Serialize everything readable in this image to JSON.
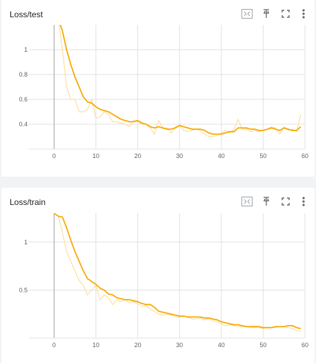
{
  "cards": [
    {
      "title": "Loss/test",
      "icons": [
        "expand-icon",
        "pin-icon",
        "fullscreen-icon",
        "more-vert-icon"
      ]
    },
    {
      "title": "Loss/train",
      "icons": [
        "expand-icon",
        "pin-icon",
        "fullscreen-icon",
        "more-vert-icon"
      ]
    }
  ],
  "colors": {
    "smoothed": "#f9a800",
    "raw": "#fcd98a",
    "grid": "#e0e0e0",
    "axis": "#9e9e9e"
  },
  "chart_data": [
    {
      "type": "line",
      "title": "Loss/test",
      "xlabel": "",
      "ylabel": "",
      "xlim": [
        -6,
        60
      ],
      "ylim": [
        0.2,
        1.2
      ],
      "x_ticks": [
        0,
        10,
        20,
        30,
        40,
        50,
        60
      ],
      "y_ticks": [
        0.4,
        0.6,
        0.8,
        1
      ],
      "grid": true,
      "series": [
        {
          "style": "raw",
          "x": [
            1,
            2,
            3,
            4,
            5,
            6,
            7,
            8,
            9,
            10,
            11,
            12,
            13,
            14,
            15,
            16,
            17,
            18,
            19,
            20,
            21,
            22,
            23,
            24,
            25,
            26,
            27,
            28,
            29,
            30,
            31,
            32,
            33,
            34,
            35,
            36,
            37,
            38,
            39,
            40,
            41,
            42,
            43,
            44,
            45,
            46,
            47,
            48,
            49,
            50,
            51,
            52,
            53,
            54,
            55,
            56,
            57,
            58,
            59
          ],
          "y": [
            1.25,
            1.0,
            0.7,
            0.6,
            0.6,
            0.5,
            0.5,
            0.52,
            0.6,
            0.45,
            0.46,
            0.5,
            0.48,
            0.42,
            0.42,
            0.41,
            0.4,
            0.38,
            0.43,
            0.42,
            0.4,
            0.4,
            0.37,
            0.32,
            0.43,
            0.37,
            0.37,
            0.33,
            0.38,
            0.39,
            0.35,
            0.34,
            0.35,
            0.36,
            0.35,
            0.32,
            0.3,
            0.3,
            0.31,
            0.33,
            0.35,
            0.33,
            0.36,
            0.44,
            0.36,
            0.36,
            0.34,
            0.35,
            0.34,
            0.35,
            0.36,
            0.38,
            0.37,
            0.32,
            0.38,
            0.35,
            0.36,
            0.34,
            0.48
          ]
        },
        {
          "style": "smoothed",
          "x": [
            1,
            2,
            3,
            4,
            5,
            6,
            7,
            8,
            9,
            10,
            11,
            12,
            13,
            14,
            15,
            16,
            17,
            18,
            19,
            20,
            21,
            22,
            23,
            24,
            25,
            26,
            27,
            28,
            29,
            30,
            31,
            32,
            33,
            34,
            35,
            36,
            37,
            38,
            39,
            40,
            41,
            42,
            43,
            44,
            45,
            46,
            47,
            48,
            49,
            50,
            51,
            52,
            53,
            54,
            55,
            56,
            57,
            58,
            59
          ],
          "y": [
            1.25,
            1.15,
            1.0,
            0.88,
            0.78,
            0.7,
            0.62,
            0.58,
            0.57,
            0.54,
            0.52,
            0.51,
            0.5,
            0.48,
            0.46,
            0.44,
            0.43,
            0.42,
            0.42,
            0.43,
            0.41,
            0.4,
            0.38,
            0.37,
            0.38,
            0.37,
            0.36,
            0.36,
            0.37,
            0.39,
            0.38,
            0.37,
            0.36,
            0.36,
            0.36,
            0.35,
            0.33,
            0.32,
            0.32,
            0.32,
            0.33,
            0.34,
            0.34,
            0.37,
            0.37,
            0.37,
            0.36,
            0.36,
            0.35,
            0.35,
            0.36,
            0.37,
            0.36,
            0.35,
            0.37,
            0.36,
            0.35,
            0.35,
            0.38
          ]
        }
      ]
    },
    {
      "type": "line",
      "title": "Loss/train",
      "xlabel": "",
      "ylabel": "",
      "xlim": [
        -6,
        60
      ],
      "ylim": [
        0,
        1.3
      ],
      "x_ticks": [
        0,
        10,
        20,
        30,
        40,
        50,
        60
      ],
      "y_ticks": [
        0.5,
        1
      ],
      "grid": true,
      "series": [
        {
          "style": "raw",
          "x": [
            0,
            1,
            2,
            3,
            4,
            5,
            6,
            7,
            8,
            9,
            10,
            11,
            12,
            13,
            14,
            15,
            16,
            17,
            18,
            19,
            20,
            21,
            22,
            23,
            24,
            25,
            26,
            27,
            28,
            29,
            30,
            31,
            32,
            33,
            34,
            35,
            36,
            37,
            38,
            39,
            40,
            41,
            42,
            43,
            44,
            45,
            46,
            47,
            48,
            49,
            50,
            51,
            52,
            53,
            54,
            55,
            56,
            57,
            58,
            59
          ],
          "y": [
            1.3,
            1.27,
            1.1,
            0.9,
            0.8,
            0.7,
            0.6,
            0.55,
            0.45,
            0.5,
            0.55,
            0.4,
            0.45,
            0.42,
            0.35,
            0.4,
            0.38,
            0.4,
            0.37,
            0.38,
            0.36,
            0.33,
            0.34,
            0.3,
            0.28,
            0.25,
            0.24,
            0.25,
            0.24,
            0.22,
            0.22,
            0.23,
            0.22,
            0.2,
            0.2,
            0.21,
            0.19,
            0.2,
            0.18,
            0.17,
            0.15,
            0.13,
            0.14,
            0.13,
            0.12,
            0.12,
            0.12,
            0.11,
            0.11,
            0.11,
            0.1,
            0.11,
            0.11,
            0.11,
            0.12,
            0.12,
            0.11,
            0.1,
            0.08,
            0.07
          ]
        },
        {
          "style": "smoothed",
          "x": [
            0,
            1,
            2,
            3,
            4,
            5,
            6,
            7,
            8,
            9,
            10,
            11,
            12,
            13,
            14,
            15,
            16,
            17,
            18,
            19,
            20,
            21,
            22,
            23,
            24,
            25,
            26,
            27,
            28,
            29,
            30,
            31,
            32,
            33,
            34,
            35,
            36,
            37,
            38,
            39,
            40,
            41,
            42,
            43,
            44,
            45,
            46,
            47,
            48,
            49,
            50,
            51,
            52,
            53,
            54,
            55,
            56,
            57,
            58,
            59
          ],
          "y": [
            1.3,
            1.27,
            1.26,
            1.15,
            1.02,
            0.9,
            0.8,
            0.7,
            0.62,
            0.59,
            0.56,
            0.52,
            0.5,
            0.46,
            0.45,
            0.42,
            0.41,
            0.4,
            0.4,
            0.39,
            0.38,
            0.36,
            0.35,
            0.35,
            0.32,
            0.28,
            0.27,
            0.26,
            0.25,
            0.24,
            0.23,
            0.23,
            0.22,
            0.22,
            0.22,
            0.22,
            0.21,
            0.21,
            0.2,
            0.19,
            0.17,
            0.16,
            0.15,
            0.14,
            0.14,
            0.13,
            0.12,
            0.12,
            0.12,
            0.12,
            0.11,
            0.11,
            0.11,
            0.12,
            0.12,
            0.12,
            0.13,
            0.13,
            0.11,
            0.1
          ]
        }
      ]
    }
  ]
}
